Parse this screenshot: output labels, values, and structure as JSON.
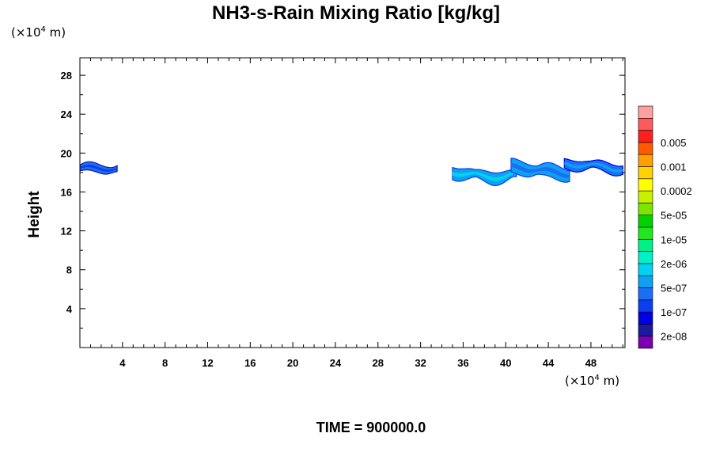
{
  "chart_data": {
    "type": "heatmap",
    "title": "NH3-s-Rain Mixing Ratio [kg/kg]",
    "ylabel": "Height",
    "x_unit": {
      "prefix": "(×10",
      "exp": "4",
      "suffix": " m)"
    },
    "y_unit": {
      "prefix": "(×10",
      "exp": "4",
      "suffix": " m)"
    },
    "xlim": [
      0,
      51.2
    ],
    "ylim": [
      0,
      29.8
    ],
    "x_ticks": [
      4,
      8,
      12,
      16,
      20,
      24,
      28,
      32,
      36,
      40,
      44,
      48
    ],
    "y_ticks": [
      4,
      8,
      12,
      16,
      20,
      24,
      28
    ],
    "footer": "TIME = 900000.0",
    "colorbar": {
      "colors": [
        "#7a00b0",
        "#1a1a9c",
        "#0000e6",
        "#0a3ef0",
        "#1a6ff5",
        "#0fa0f0",
        "#00d2f0",
        "#00f0c8",
        "#00f08a",
        "#22e61e",
        "#00d200",
        "#7ae600",
        "#c8f000",
        "#ffff00",
        "#ffd200",
        "#ffa000",
        "#ff5a00",
        "#ff1e1e",
        "#ff5a5a",
        "#ffa0a0"
      ],
      "labels": [
        "2e-08",
        "1e-07",
        "5e-07",
        "2e-06",
        "1e-05",
        "5e-05",
        "0.0002",
        "0.001",
        "0.005"
      ]
    },
    "regions": [
      {
        "name": "left-cloud",
        "x_start": 0,
        "x_end": 3.6,
        "y_low": 17.8,
        "y_high": 19.0,
        "level": "1e-07 to 5e-07"
      },
      {
        "name": "right-cloud",
        "x_start": 35.0,
        "x_end": 51.2,
        "y_low": 17.2,
        "y_high": 19.2,
        "level": "1e-07 to 2e-06"
      }
    ]
  }
}
